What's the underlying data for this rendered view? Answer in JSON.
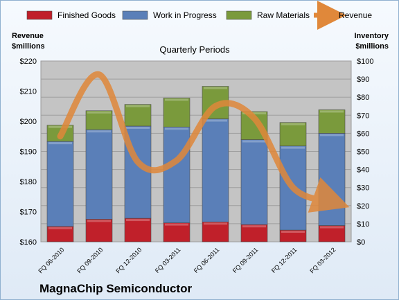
{
  "chart_data": {
    "type": "bar",
    "subtype": "stacked-bar-with-line",
    "title": "Quarterly Periods",
    "company": "MagnaChip Semiconductor",
    "left_axis": {
      "label_line1": "Revenue",
      "label_line2": "$millions",
      "min": 160,
      "max": 220,
      "step": 10,
      "prefix": "$"
    },
    "right_axis": {
      "label_line1": "Inventory",
      "label_line2": "$millions",
      "min": 0,
      "max": 100,
      "step": 10,
      "prefix": "$"
    },
    "grid": true,
    "legend_position": "top",
    "categories": [
      "FQ 06-2010",
      "FQ 09-2010",
      "FQ 12-2010",
      "FQ 03-2011",
      "FQ 06-2011",
      "FQ 09-2011",
      "FQ 12-2011",
      "FQ 03-2012"
    ],
    "series": [
      {
        "name": "Finished Goods",
        "axis": "right",
        "color": "#c0202a",
        "values": [
          8.5,
          12.5,
          13,
          10.5,
          11,
          9.5,
          6.5,
          9
        ]
      },
      {
        "name": "Work in Progress",
        "axis": "right",
        "color": "#5a7fb8",
        "values": [
          47,
          49.5,
          51,
          53,
          57,
          47,
          46.5,
          51
        ]
      },
      {
        "name": "Raw Materials",
        "axis": "right",
        "color": "#7a9a3c",
        "values": [
          9,
          10.5,
          12,
          16,
          18,
          15.5,
          13,
          13
        ]
      },
      {
        "name": "Revenue",
        "axis": "left",
        "type": "line",
        "color": "#e0883a",
        "values": [
          195,
          215.5,
          186.5,
          187,
          205,
          201,
          178,
          173.5
        ]
      }
    ]
  }
}
